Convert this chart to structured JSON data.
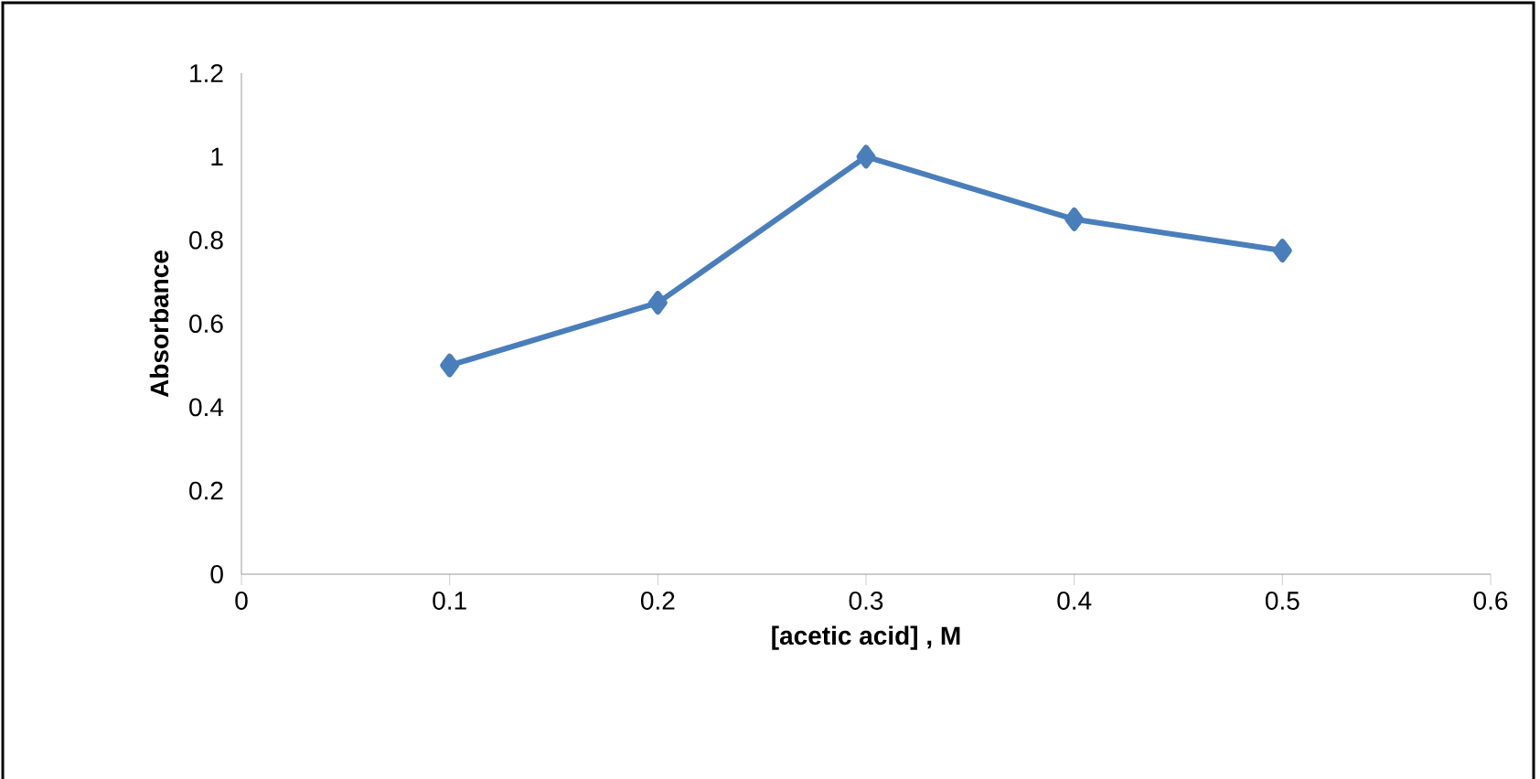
{
  "chart_data": {
    "type": "line",
    "xlabel": "[acetic acid] , M",
    "ylabel": "Absorbance",
    "x": [
      0.1,
      0.2,
      0.3,
      0.4,
      0.5
    ],
    "series": [
      {
        "color": "#4a7ebb",
        "values": [
          0.5,
          0.65,
          1.0,
          0.85,
          0.775
        ]
      }
    ],
    "xlim": [
      0,
      0.6
    ],
    "xticks": [
      0,
      0.1,
      0.2,
      0.3,
      0.4,
      0.5,
      0.6
    ],
    "ylim": [
      0,
      1.2
    ],
    "yticks": [
      0,
      0.2,
      0.4,
      0.6,
      0.8,
      1,
      1.2
    ],
    "marker": "diamond",
    "line_style": "solid"
  }
}
